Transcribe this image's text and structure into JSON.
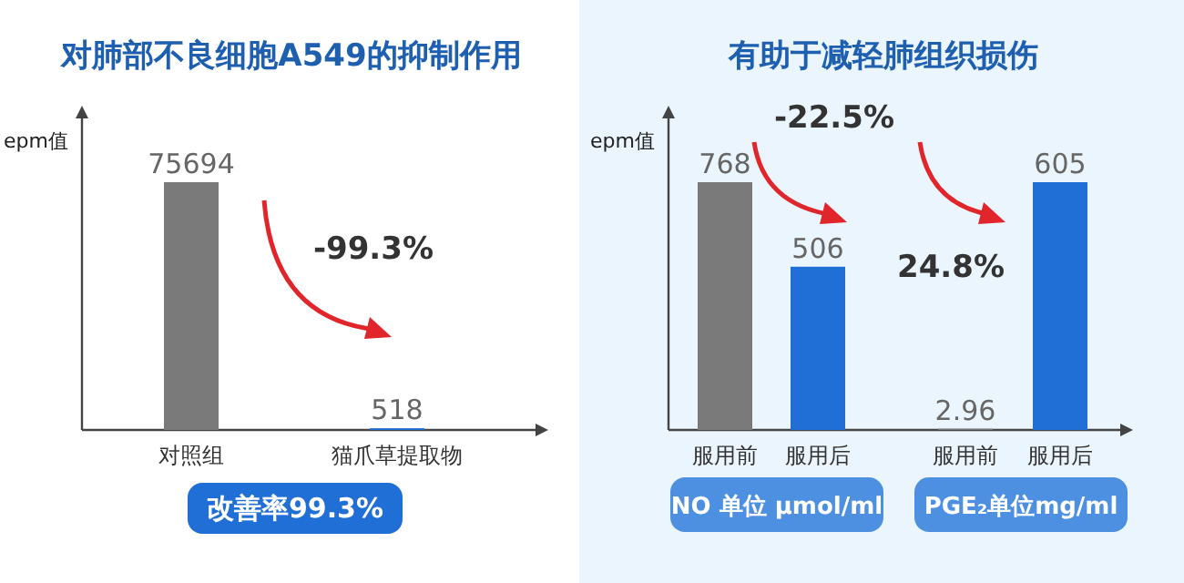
{
  "chart_data": [
    {
      "type": "bar",
      "title": "对肺部不良细胞A549的抑制作用",
      "ylabel": "epm值",
      "categories": [
        "对照组",
        "猫爪草提取物"
      ],
      "values": [
        75694,
        518
      ],
      "colors": [
        "#7a7a7a",
        "#1f6fd6"
      ],
      "data_labels": true,
      "annotations": [
        "-99.3%",
        "改善率99.3%"
      ]
    },
    {
      "type": "bar",
      "title": "有助于减轻肺组织损伤",
      "ylabel": "epm值",
      "categories": [
        "服用前",
        "服用后"
      ],
      "values": [
        768,
        506
      ],
      "colors": [
        "#7a7a7a",
        "#1f6fd6"
      ],
      "data_labels": true,
      "annotations": [
        "-22.5%",
        "NO 单位 μmol/ml"
      ]
    },
    {
      "type": "bar",
      "categories": [
        "服用前",
        "服用后"
      ],
      "values": [
        2.96,
        605
      ],
      "colors": [
        "#7a7a7a",
        "#1f6fd6"
      ],
      "data_labels": true,
      "annotations": [
        "24.8%",
        "PGE₂单位mg/ml"
      ]
    }
  ]
}
